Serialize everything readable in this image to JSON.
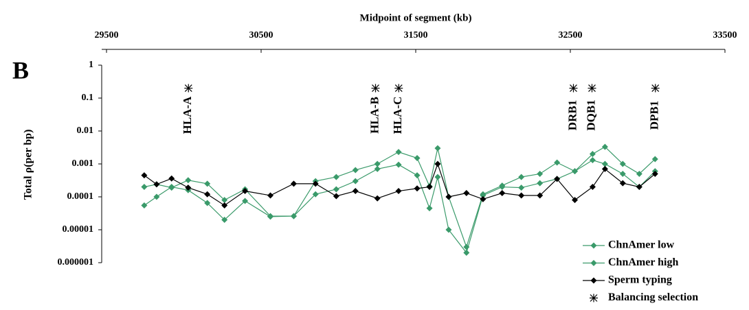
{
  "chart_data": {
    "type": "line",
    "panel_label": "B",
    "x_label": "Midpoint of segment (kb)",
    "y_label": "Total ρ(per bp)",
    "log_y": true,
    "xlim": [
      29500,
      33500
    ],
    "xticks": [
      29500,
      30500,
      31500,
      32500,
      33500
    ],
    "ylim": [
      1e-06,
      1
    ],
    "yticks": [
      1,
      0.1,
      0.01,
      0.001,
      0.0001,
      {
        "value": 1e-05,
        "label": "0.00001"
      },
      {
        "value": 1e-06,
        "label": "0.000001"
      }
    ],
    "legend": "bottom-right",
    "x": [
      29744,
      29824,
      29921,
      30028,
      30152,
      30263,
      30396,
      30560,
      30711,
      30852,
      30986,
      31110,
      31252,
      31389,
      31509,
      31589,
      31642,
      31713,
      31828,
      31935,
      32059,
      32183,
      32303,
      32414,
      32529,
      32644,
      32724,
      32839,
      32946,
      33048
    ],
    "series": [
      {
        "name": "ChnAmer low",
        "color": "#3a9a6a",
        "marker": "diamond",
        "values": [
          5.5e-05,
          0.0001,
          0.0002,
          0.00016,
          6.5e-05,
          2e-05,
          7.5e-05,
          2.5e-05,
          2.6e-05,
          0.00012,
          0.00017,
          0.0003,
          0.0007,
          0.00095,
          0.00045,
          4.5e-05,
          0.0004,
          1e-05,
          2e-06,
          0.00011,
          0.0002,
          0.00019,
          0.00026,
          0.00035,
          0.0006,
          0.0013,
          0.001,
          0.0005,
          0.0002,
          0.0006
        ]
      },
      {
        "name": "ChnAmer high",
        "color": "#3a9a6a",
        "marker": "diamond",
        "values": [
          0.0002,
          0.00024,
          0.00019,
          0.00032,
          0.00025,
          8e-05,
          0.00017,
          2.6e-05,
          2.6e-05,
          0.0003,
          0.0004,
          0.00065,
          0.001,
          0.0023,
          0.0015,
          0.00021,
          0.003,
          0.0001,
          3e-06,
          0.00012,
          0.00022,
          0.0004,
          0.0005,
          0.0011,
          0.0006,
          0.002,
          0.0033,
          0.001,
          0.0005,
          0.0014
        ]
      },
      {
        "name": "Sperm typing",
        "color": "#000000",
        "marker": "diamond",
        "values": [
          0.00045,
          0.00024,
          0.00036,
          0.00019,
          0.00012,
          5.5e-05,
          0.00015,
          0.00011,
          0.00025,
          0.00025,
          0.000105,
          0.00015,
          9e-05,
          0.00015,
          0.00018,
          0.0002,
          0.001,
          0.0001,
          0.00013,
          8.5e-05,
          0.00013,
          0.00011,
          0.00011,
          0.00035,
          8e-05,
          0.0002,
          0.0007,
          0.00026,
          0.0002,
          0.0005
        ]
      },
      {
        "name": "Balancing selection",
        "color": "#000000",
        "marker": "star",
        "x": [
          30030,
          31240,
          31390,
          32520,
          32640,
          33050
        ],
        "values": [
          0.2,
          0.2,
          0.2,
          0.2,
          0.2,
          0.2
        ],
        "labels": [
          "HLA-A",
          "HLA-B",
          "HLA-C",
          "DRB1",
          "DQB1",
          "DPB1"
        ]
      }
    ]
  }
}
